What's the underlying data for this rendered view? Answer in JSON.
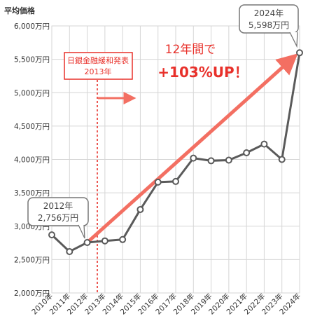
{
  "chart_data": {
    "type": "line",
    "unit_label": "平均価格",
    "categories": [
      "2010年",
      "2011年",
      "2012年",
      "2013年",
      "2014年",
      "2015年",
      "2016年",
      "2017年",
      "2018年",
      "2019年",
      "2020年",
      "2021年",
      "2022年",
      "2023年",
      "2024年"
    ],
    "values": [
      2870,
      2620,
      2756,
      2780,
      2800,
      3250,
      3660,
      3670,
      4020,
      3980,
      3990,
      4100,
      4230,
      4000,
      5598
    ],
    "y_ticks": [
      "2,000万円",
      "2,500万円",
      "3,000万円",
      "3,500万円",
      "4,000万円",
      "4,500万円",
      "5,000万円",
      "5,500万円",
      "6,000万円"
    ],
    "ylim": [
      2000,
      6000
    ],
    "grid": true,
    "series_color": "#5a5a5a",
    "trend_arrow_color": "#f36f62",
    "accent_color": "#e8302a",
    "callouts": [
      {
        "year_line": "2012年",
        "value_line": "2,756万円"
      },
      {
        "year_line": "2024年",
        "value_line": "5,598万円"
      }
    ],
    "event": {
      "line1": "日銀金融緩和発表",
      "line2": "2013年"
    },
    "growth": {
      "line1": "12年間で",
      "line2": "+103%UP！"
    }
  }
}
